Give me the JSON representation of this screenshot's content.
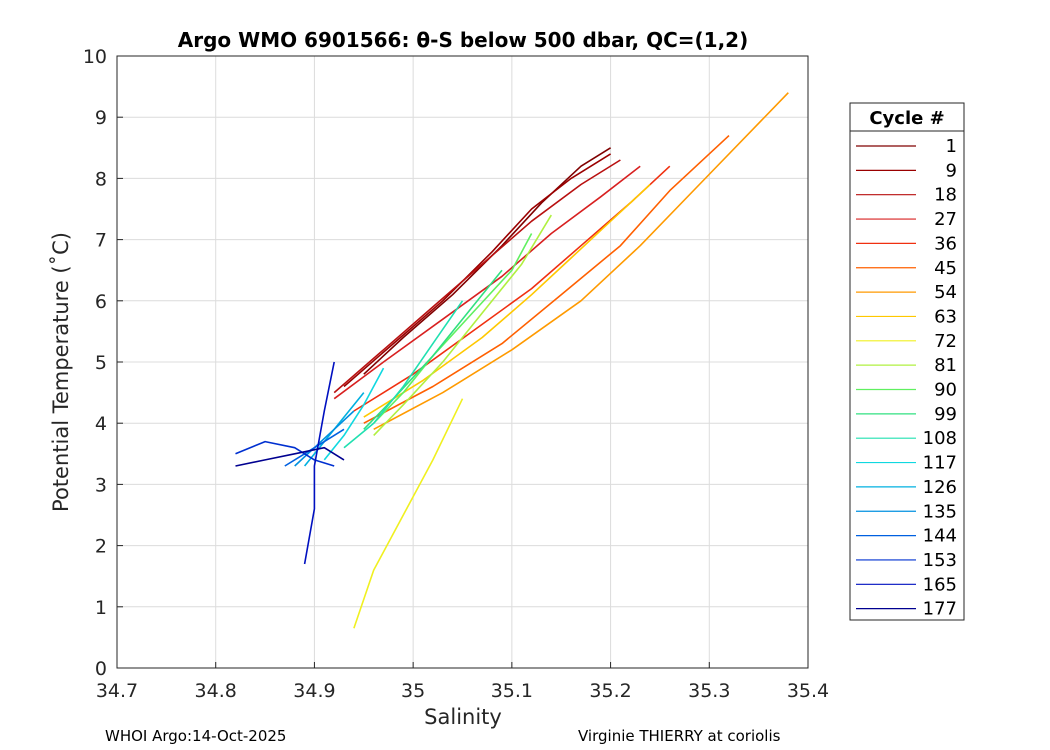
{
  "chart_data": {
    "type": "line",
    "title": "Argo WMO 6901566: θ-S below 500 dbar,  QC=(1,2)",
    "xlabel": "Salinity",
    "ylabel": "Potential Temperature (˚C)",
    "xlim": [
      34.7,
      35.4
    ],
    "ylim": [
      0,
      10
    ],
    "xticks": [
      "34.7",
      "34.8",
      "34.9",
      "35",
      "35.1",
      "35.2",
      "35.3",
      "35.4"
    ],
    "yticks": [
      "0",
      "1",
      "2",
      "3",
      "4",
      "5",
      "6",
      "7",
      "8",
      "9",
      "10"
    ],
    "grid": true,
    "legend": {
      "title": "Cycle #",
      "position": "outside-right",
      "entries": [
        {
          "label": "1",
          "color": "#800000"
        },
        {
          "label": "9",
          "color": "#9a0000"
        },
        {
          "label": "18",
          "color": "#b81010"
        },
        {
          "label": "27",
          "color": "#d82020"
        },
        {
          "label": "36",
          "color": "#f03010"
        },
        {
          "label": "45",
          "color": "#ff6000"
        },
        {
          "label": "54",
          "color": "#ff9a00"
        },
        {
          "label": "63",
          "color": "#ffc800"
        },
        {
          "label": "72",
          "color": "#f0f020"
        },
        {
          "label": "81",
          "color": "#b0f040"
        },
        {
          "label": "90",
          "color": "#60f060"
        },
        {
          "label": "99",
          "color": "#30e080"
        },
        {
          "label": "108",
          "color": "#20e0b0"
        },
        {
          "label": "117",
          "color": "#10d8e0"
        },
        {
          "label": "126",
          "color": "#00b0e0"
        },
        {
          "label": "135",
          "color": "#0090e0"
        },
        {
          "label": "144",
          "color": "#0060e0"
        },
        {
          "label": "153",
          "color": "#0030d0"
        },
        {
          "label": "165",
          "color": "#0010c0"
        },
        {
          "label": "177",
          "color": "#000090"
        }
      ]
    },
    "series": [
      {
        "color": "#800000",
        "x": [
          34.95,
          34.99,
          35.04,
          35.09,
          35.13,
          35.17,
          35.2
        ],
        "y": [
          4.8,
          5.4,
          6.1,
          6.9,
          7.6,
          8.2,
          8.5
        ]
      },
      {
        "color": "#9a0000",
        "x": [
          34.93,
          34.98,
          35.03,
          35.08,
          35.12,
          35.16,
          35.2
        ],
        "y": [
          4.6,
          5.3,
          6.0,
          6.8,
          7.5,
          8.0,
          8.4
        ]
      },
      {
        "color": "#b81010",
        "x": [
          34.92,
          34.97,
          35.02,
          35.07,
          35.12,
          35.17,
          35.21
        ],
        "y": [
          4.5,
          5.2,
          5.9,
          6.6,
          7.3,
          7.9,
          8.3
        ]
      },
      {
        "color": "#d82020",
        "x": [
          34.92,
          34.97,
          35.03,
          35.09,
          35.14,
          35.19,
          35.23
        ],
        "y": [
          4.4,
          5.0,
          5.7,
          6.4,
          7.1,
          7.7,
          8.2
        ]
      },
      {
        "color": "#f03010",
        "x": [
          34.94,
          35.0,
          35.06,
          35.12,
          35.17,
          35.22,
          35.26
        ],
        "y": [
          4.2,
          4.8,
          5.5,
          6.2,
          6.9,
          7.6,
          8.2
        ]
      },
      {
        "color": "#ff6000",
        "x": [
          34.95,
          35.02,
          35.09,
          35.15,
          35.21,
          35.26,
          35.32
        ],
        "y": [
          4.0,
          4.6,
          5.3,
          6.1,
          6.9,
          7.8,
          8.7
        ]
      },
      {
        "color": "#ff9a00",
        "x": [
          34.96,
          35.03,
          35.1,
          35.17,
          35.23,
          35.29,
          35.38
        ],
        "y": [
          3.9,
          4.5,
          5.2,
          6.0,
          6.9,
          7.9,
          9.4
        ]
      },
      {
        "color": "#ffc800",
        "x": [
          34.95,
          35.01,
          35.07,
          35.12,
          35.16,
          35.2,
          35.24
        ],
        "y": [
          4.1,
          4.7,
          5.4,
          6.1,
          6.7,
          7.3,
          7.9
        ]
      },
      {
        "color": "#f0f020",
        "x": [
          34.94,
          34.96,
          34.99,
          35.02,
          35.05
        ],
        "y": [
          0.65,
          1.6,
          2.5,
          3.4,
          4.4
        ]
      },
      {
        "color": "#b0f040",
        "x": [
          34.96,
          34.99,
          35.03,
          35.07,
          35.11,
          35.14
        ],
        "y": [
          3.8,
          4.3,
          5.0,
          5.8,
          6.6,
          7.4
        ]
      },
      {
        "color": "#60f060",
        "x": [
          34.96,
          34.99,
          35.02,
          35.06,
          35.1,
          35.12
        ],
        "y": [
          4.0,
          4.5,
          5.1,
          5.8,
          6.5,
          7.1
        ]
      },
      {
        "color": "#30e080",
        "x": [
          34.95,
          34.98,
          35.02,
          35.06,
          35.09
        ],
        "y": [
          3.9,
          4.4,
          5.1,
          5.9,
          6.5
        ]
      },
      {
        "color": "#20e0b0",
        "x": [
          34.93,
          34.96,
          34.99,
          35.02,
          35.05
        ],
        "y": [
          3.6,
          4.0,
          4.6,
          5.3,
          6.0
        ]
      },
      {
        "color": "#10d8e0",
        "x": [
          34.91,
          34.93,
          34.95,
          34.97
        ],
        "y": [
          3.4,
          3.8,
          4.3,
          4.9
        ]
      },
      {
        "color": "#00b0e0",
        "x": [
          34.89,
          34.91,
          34.93,
          34.95
        ],
        "y": [
          3.3,
          3.7,
          4.1,
          4.5
        ]
      },
      {
        "color": "#0090e0",
        "x": [
          34.88,
          34.9,
          34.92,
          34.94
        ],
        "y": [
          3.3,
          3.6,
          3.9,
          4.2
        ]
      },
      {
        "color": "#0060e0",
        "x": [
          34.87,
          34.89,
          34.91,
          34.93
        ],
        "y": [
          3.3,
          3.5,
          3.7,
          3.9
        ]
      },
      {
        "color": "#0030d0",
        "x": [
          34.82,
          34.85,
          34.88,
          34.9,
          34.92
        ],
        "y": [
          3.5,
          3.7,
          3.6,
          3.4,
          3.3
        ]
      },
      {
        "color": "#0010c0",
        "x": [
          34.89,
          34.9,
          34.9,
          34.91,
          34.92
        ],
        "y": [
          1.7,
          2.6,
          3.3,
          4.2,
          5.0
        ]
      },
      {
        "color": "#000090",
        "x": [
          34.82,
          34.85,
          34.88,
          34.91,
          34.93
        ],
        "y": [
          3.3,
          3.4,
          3.5,
          3.6,
          3.4
        ]
      }
    ]
  },
  "footer": {
    "left": "WHOI Argo:14-Oct-2025",
    "right": "Virginie THIERRY at coriolis"
  }
}
